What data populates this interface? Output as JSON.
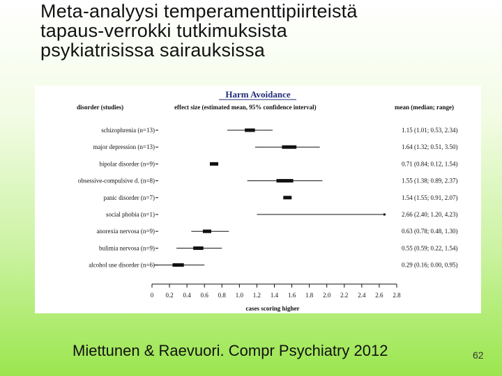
{
  "slide": {
    "title_lines": [
      "Meta-analyysi temperamenttipiirteistä",
      "tapaus-verrokki tutkimuksista",
      "psykiatrisissa sairauksissa"
    ],
    "citation": "Miettunen & Raevuori. Compr Psychiatry 2012",
    "page_number": "62"
  },
  "chart_data": {
    "type": "forest",
    "title": "Harm Avoidance",
    "column_headers": {
      "left": "disorder (studies)",
      "middle": "effect size (estimated mean, 95% confidence interval)",
      "right": "mean (median; range)"
    },
    "xlabel": "cases scoring higher",
    "xlim": [
      0,
      2.8
    ],
    "xticks": [
      0,
      0.2,
      0.4,
      0.6,
      0.8,
      1.0,
      1.2,
      1.4,
      1.6,
      1.8,
      2.0,
      2.2,
      2.4,
      2.6,
      2.8
    ],
    "xtick_labels": [
      "0",
      "0.2",
      "0.4",
      "0.6",
      "0.8",
      "1.0",
      "1.2",
      "1.4",
      "1.6",
      "1.8",
      "2.0",
      "2.2",
      "2.4",
      "2.6",
      "2.8"
    ],
    "rows": [
      {
        "label": "schizophrenia (n=13)",
        "mean": 1.12,
        "ci_low": 0.86,
        "ci_high": 1.38,
        "right_text": "1.15 (1.01; 0.53, 2.34)"
      },
      {
        "label": "major depression (n=13)",
        "mean": 1.57,
        "ci_low": 1.18,
        "ci_high": 1.92,
        "right_text": "1.64 (1.32; 0.51, 3.50)"
      },
      {
        "label": "bipolar disorder (n=9)",
        "mean": 0.71,
        "ci_low": 0.71,
        "ci_high": 0.71,
        "right_text": "0.71 (0.84; 0.12, 1.54)"
      },
      {
        "label": "obsessive-compulsive d. (n=8)",
        "mean": 1.52,
        "ci_low": 1.09,
        "ci_high": 1.95,
        "right_text": "1.55 (1.38; 0.89, 2.37)"
      },
      {
        "label": "panic disorder (n=7)",
        "mean": 1.55,
        "ci_low": 1.55,
        "ci_high": 1.55,
        "right_text": "1.54 (1.55; 0.91, 2.07)"
      },
      {
        "label": "social phobia (n=1)",
        "mean": 2.66,
        "ci_low": 1.2,
        "ci_high": 2.66,
        "right_text": "2.66 (2.40; 1.20, 4.23)"
      },
      {
        "label": "anorexia nervosa (n=9)",
        "mean": 0.63,
        "ci_low": 0.45,
        "ci_high": 0.88,
        "right_text": "0.63 (0.78; 0.48, 1.30)"
      },
      {
        "label": "bulimia nervosa (n=9)",
        "mean": 0.53,
        "ci_low": 0.28,
        "ci_high": 0.8,
        "right_text": "0.55 (0.59; 0.22, 1.54)"
      },
      {
        "label": "alcohol use disorder (n=6)",
        "mean": 0.3,
        "ci_low": 0.02,
        "ci_high": 0.6,
        "right_text": "0.29 (0.16; 0.00, 0.95)"
      }
    ]
  }
}
